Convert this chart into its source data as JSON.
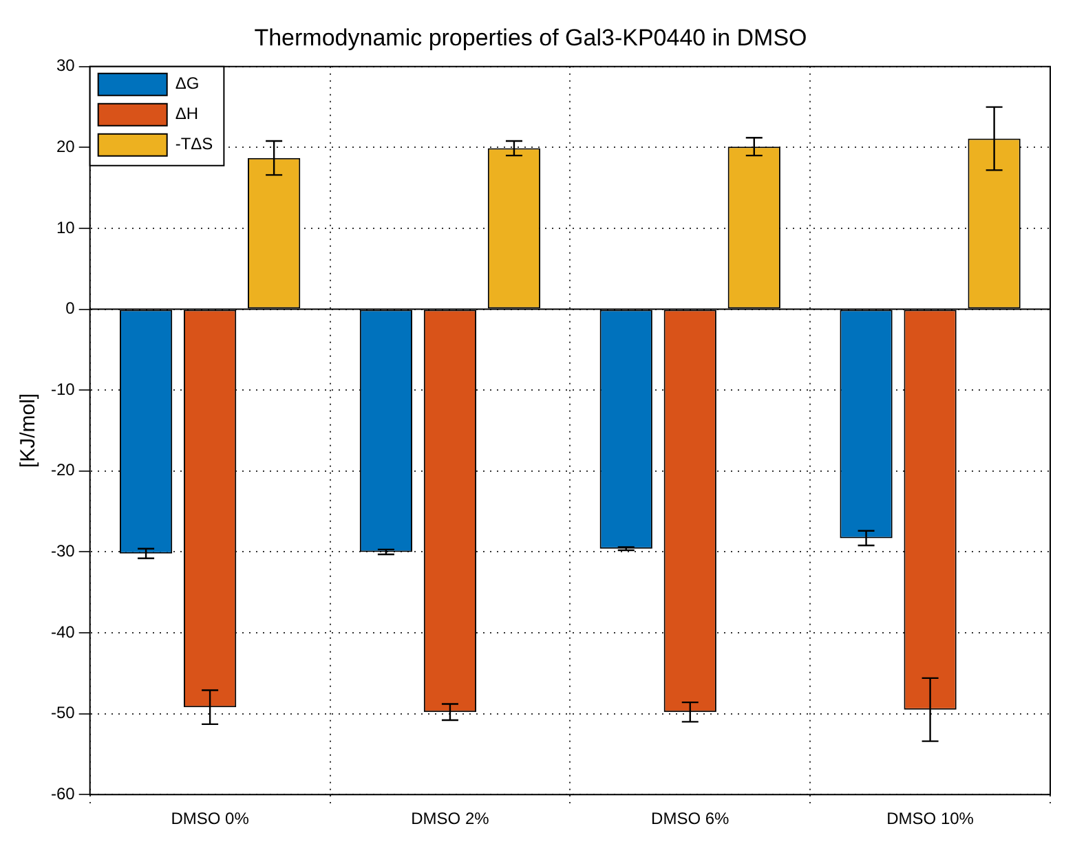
{
  "chart_data": {
    "type": "bar",
    "title": "Thermodynamic properties of Gal3-KP0440 in DMSO",
    "ylabel": "[KJ/mol]",
    "categories": [
      "DMSO 0%",
      "DMSO 2%",
      "DMSO 6%",
      "DMSO 10%"
    ],
    "series": [
      {
        "name": "ΔG",
        "color": "#0072bd",
        "values": [
          -30.2,
          -30.0,
          -29.6,
          -28.3
        ],
        "errors": [
          0.6,
          0.3,
          0.2,
          0.9
        ]
      },
      {
        "name": "ΔH",
        "color": "#d95319",
        "values": [
          -49.2,
          -49.8,
          -49.8,
          -49.5
        ],
        "errors": [
          2.1,
          1.0,
          1.2,
          3.9
        ]
      },
      {
        "name": "-TΔS",
        "color": "#edb120",
        "values": [
          18.7,
          19.9,
          20.1,
          21.1
        ],
        "errors": [
          2.1,
          0.9,
          1.1,
          3.9
        ]
      }
    ],
    "ylim": [
      -60,
      30
    ],
    "yticks": [
      -60,
      -50,
      -40,
      -30,
      -20,
      -10,
      0,
      10,
      20,
      30
    ],
    "grid": true,
    "legend": "top left"
  }
}
